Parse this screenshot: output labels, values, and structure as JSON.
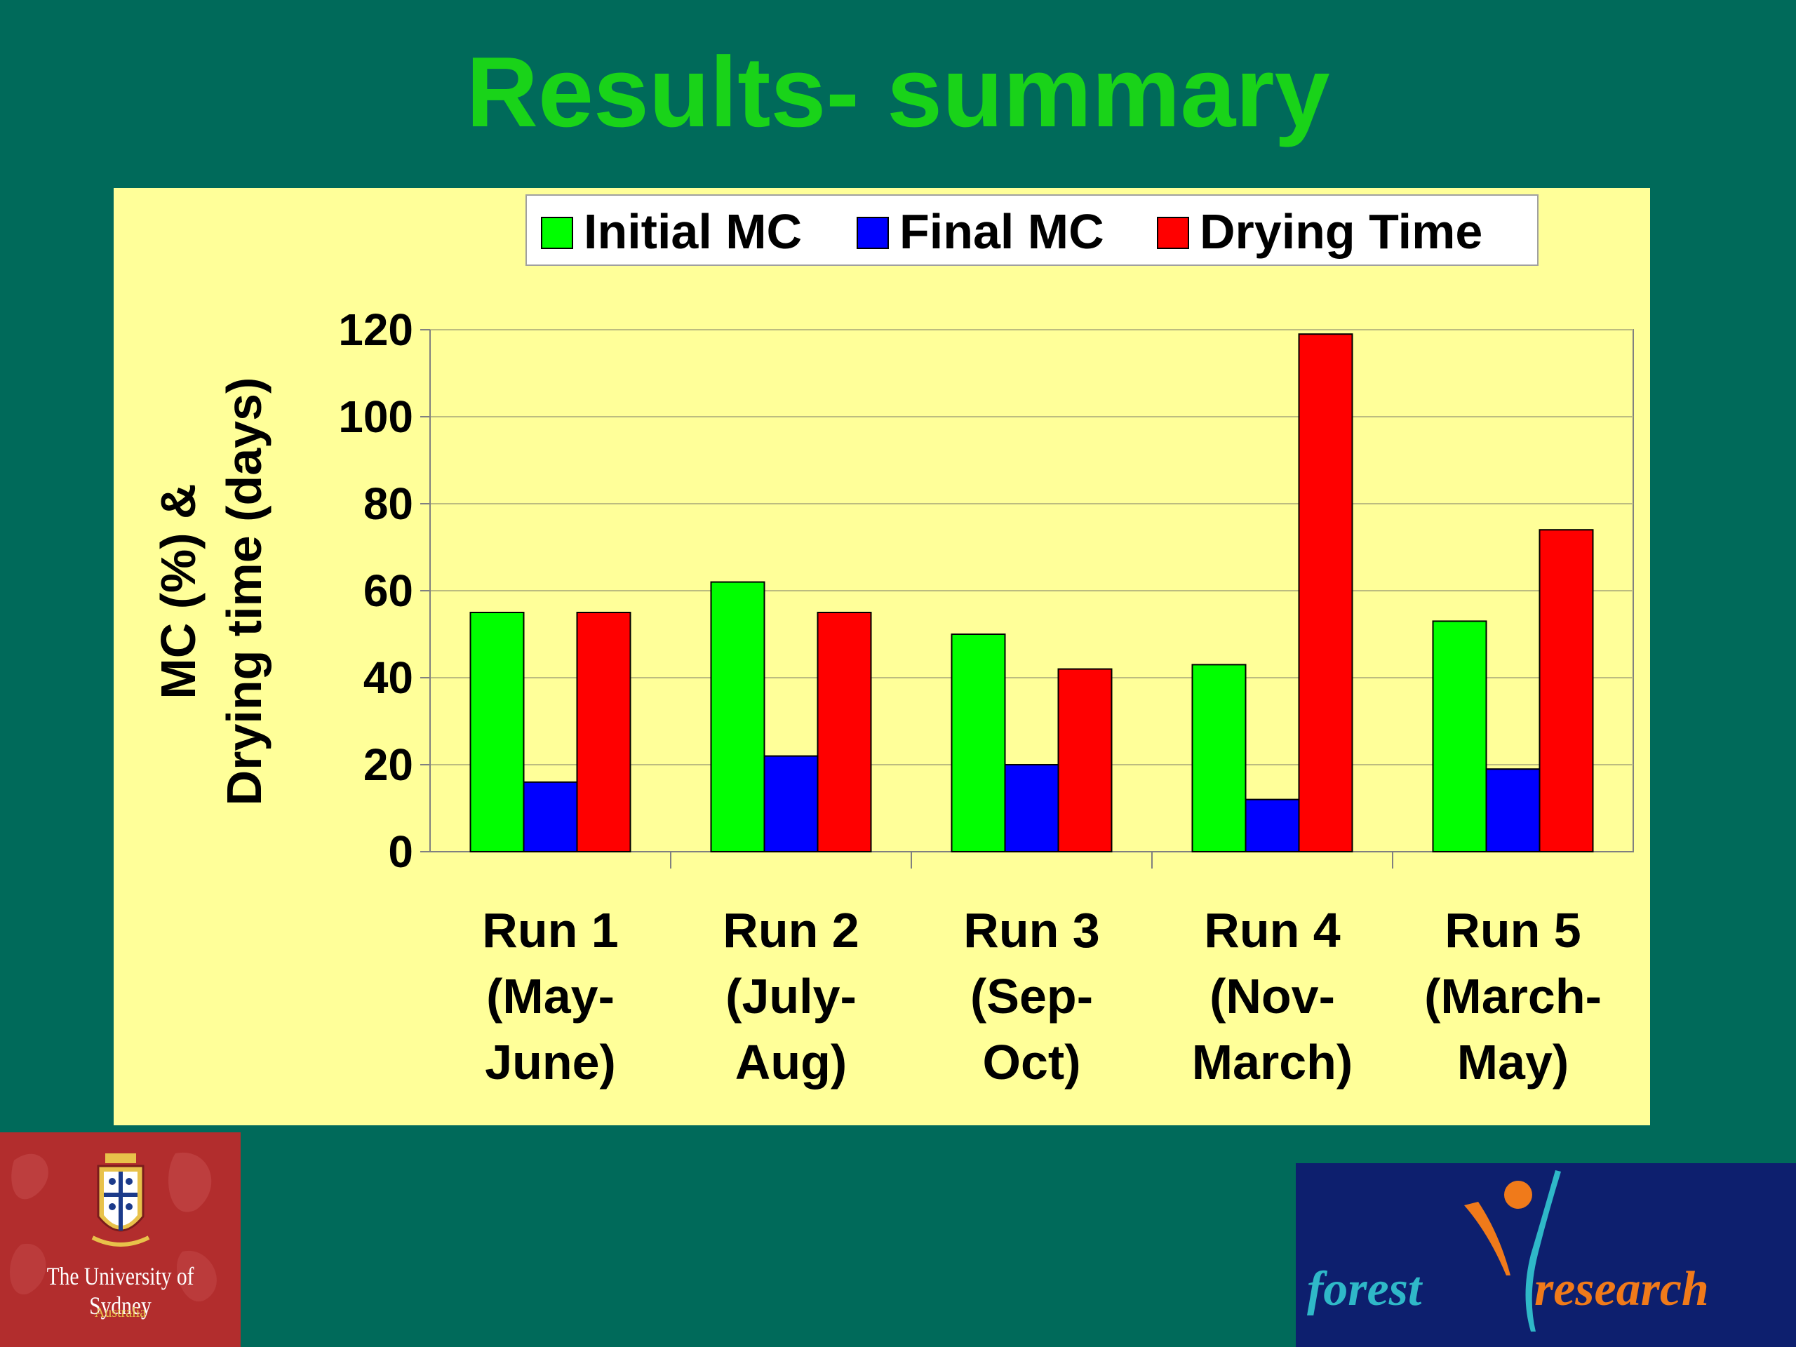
{
  "slide": {
    "title": "Results- summary"
  },
  "chart_data": {
    "type": "bar",
    "categories": [
      [
        "Run 1",
        "(May-",
        "June)"
      ],
      [
        "Run 2",
        "(July-",
        "Aug)"
      ],
      [
        "Run 3",
        "(Sep-",
        "Oct)"
      ],
      [
        "Run 4",
        "(Nov-",
        "March)"
      ],
      [
        "Run 5",
        "(March-",
        "May)"
      ]
    ],
    "series": [
      {
        "name": "Initial MC",
        "color": "#00ff00",
        "values": [
          55,
          62,
          50,
          43,
          53
        ]
      },
      {
        "name": "Final MC",
        "color": "#0000ff",
        "values": [
          16,
          22,
          20,
          12,
          19
        ]
      },
      {
        "name": "Drying Time",
        "color": "#ff0000",
        "values": [
          55,
          55,
          42,
          119,
          74
        ]
      }
    ],
    "ylabel": [
      "MC (%) &",
      "Drying time (days)"
    ],
    "xlabel": "",
    "ylim": [
      0,
      120
    ],
    "yticks": [
      0,
      20,
      40,
      60,
      80,
      100,
      120
    ],
    "grid": true,
    "legend_position": "top",
    "background": "#ffff99"
  },
  "logos": {
    "university": {
      "line1": "The University of Sydney",
      "line2": "Australia"
    },
    "forest_research": {
      "word1": "forest",
      "word2": "research"
    }
  }
}
